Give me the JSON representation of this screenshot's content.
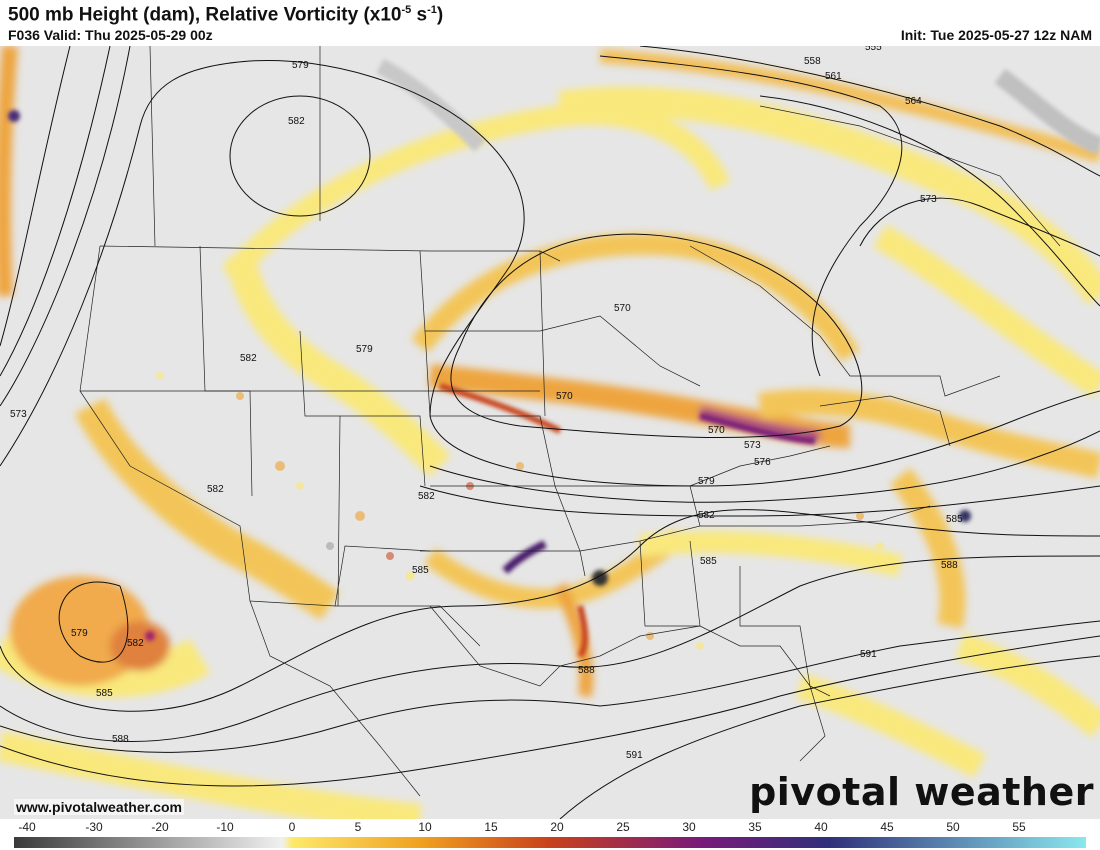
{
  "header": {
    "title_main": "500 mb Height (dam), Relative Vorticity (x10",
    "title_exp": "-5",
    "title_unit": " s",
    "title_unit_exp": "-1",
    "title_close": ")",
    "valid": "F036 Valid: Thu 2025-05-29 00z",
    "init": "Init: Tue 2025-05-27 12z NAM"
  },
  "map": {
    "contour_labels": [
      "579",
      "582",
      "555",
      "558",
      "561",
      "564",
      "573",
      "570",
      "570",
      "570",
      "573",
      "576",
      "579",
      "582",
      "585",
      "588",
      "591",
      "591",
      "582",
      "585",
      "579",
      "582",
      "585",
      "588",
      "582",
      "573",
      "579",
      "582",
      "585",
      "588"
    ]
  },
  "footer": {
    "site": "www.pivotalweather.com",
    "brand": "pivotal weather"
  },
  "colorbar": {
    "ticks": [
      "-40",
      "-30",
      "-20",
      "-10",
      "0",
      "5",
      "10",
      "15",
      "20",
      "25",
      "30",
      "35",
      "40",
      "45",
      "50",
      "55"
    ],
    "colors": {
      "negative_dark": "#3a3a3a",
      "negative_light": "#f0f0f0",
      "yellow": "#fde96a",
      "orange": "#f0a020",
      "red": "#c8401c",
      "purple": "#7a1a7a",
      "navy": "#30307a",
      "cyan": "#8ae8ee"
    }
  }
}
